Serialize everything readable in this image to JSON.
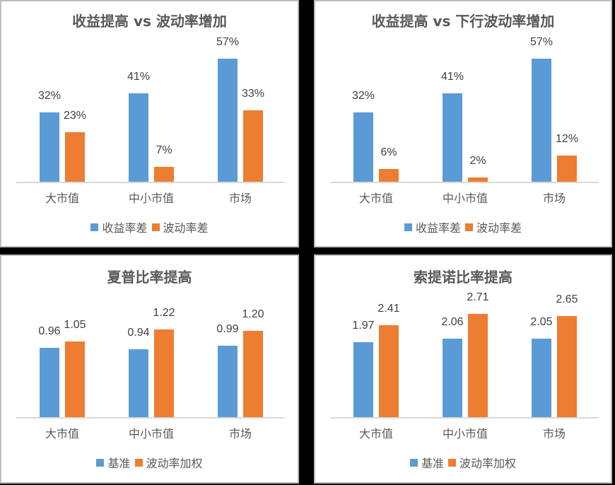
{
  "colors": {
    "series0": "#5b9bd5",
    "series1": "#ed7d31",
    "border": "#bdbdbd",
    "text": "#595959"
  },
  "chart_data": [
    {
      "type": "bar",
      "title": "收益提高 vs 波动率增加",
      "categories": [
        "大市值",
        "中小市值",
        "市场"
      ],
      "series": [
        {
          "name": "收益率差",
          "values": [
            32,
            41,
            57
          ],
          "labels": [
            "32%",
            "41%",
            "57%"
          ]
        },
        {
          "name": "波动率差",
          "values": [
            23,
            7,
            33
          ],
          "labels": [
            "23%",
            "7%",
            "33%"
          ]
        }
      ],
      "xlabel": "",
      "ylabel": "",
      "grid": false,
      "legend_position": "bottom",
      "ylim": [
        0,
        65
      ]
    },
    {
      "type": "bar",
      "title": "收益提高 vs 下行波动率增加",
      "categories": [
        "大市值",
        "中小市值",
        "市场"
      ],
      "series": [
        {
          "name": "收益率差",
          "values": [
            32,
            41,
            57
          ],
          "labels": [
            "32%",
            "41%",
            "57%"
          ]
        },
        {
          "name": "波动率差",
          "values": [
            6,
            2,
            12
          ],
          "labels": [
            "6%",
            "2%",
            "12%"
          ]
        }
      ],
      "xlabel": "",
      "ylabel": "",
      "grid": false,
      "legend_position": "bottom",
      "ylim": [
        0,
        65
      ]
    },
    {
      "type": "bar",
      "title": "夏普比率提高",
      "categories": [
        "大市值",
        "中小市值",
        "市场"
      ],
      "series": [
        {
          "name": "基准",
          "values": [
            0.96,
            0.94,
            0.99
          ],
          "labels": [
            "0.96",
            "0.94",
            "0.99"
          ]
        },
        {
          "name": "波动率加权",
          "values": [
            1.05,
            1.22,
            1.2
          ],
          "labels": [
            "1.05",
            "1.22",
            "1.20"
          ]
        }
      ],
      "xlabel": "",
      "ylabel": "",
      "grid": false,
      "legend_position": "bottom",
      "ylim": [
        0,
        1.4
      ]
    },
    {
      "type": "bar",
      "title": "索提诺比率提高",
      "categories": [
        "大市值",
        "中小市值",
        "市场"
      ],
      "series": [
        {
          "name": "基准",
          "values": [
            1.97,
            2.06,
            2.05
          ],
          "labels": [
            "1.97",
            "2.06",
            "2.05"
          ]
        },
        {
          "name": "波动率加权",
          "values": [
            2.41,
            2.71,
            2.65
          ],
          "labels": [
            "2.41",
            "2.71",
            "2.65"
          ]
        }
      ],
      "xlabel": "",
      "ylabel": "",
      "grid": false,
      "legend_position": "bottom",
      "ylim": [
        0,
        3.1
      ]
    }
  ]
}
